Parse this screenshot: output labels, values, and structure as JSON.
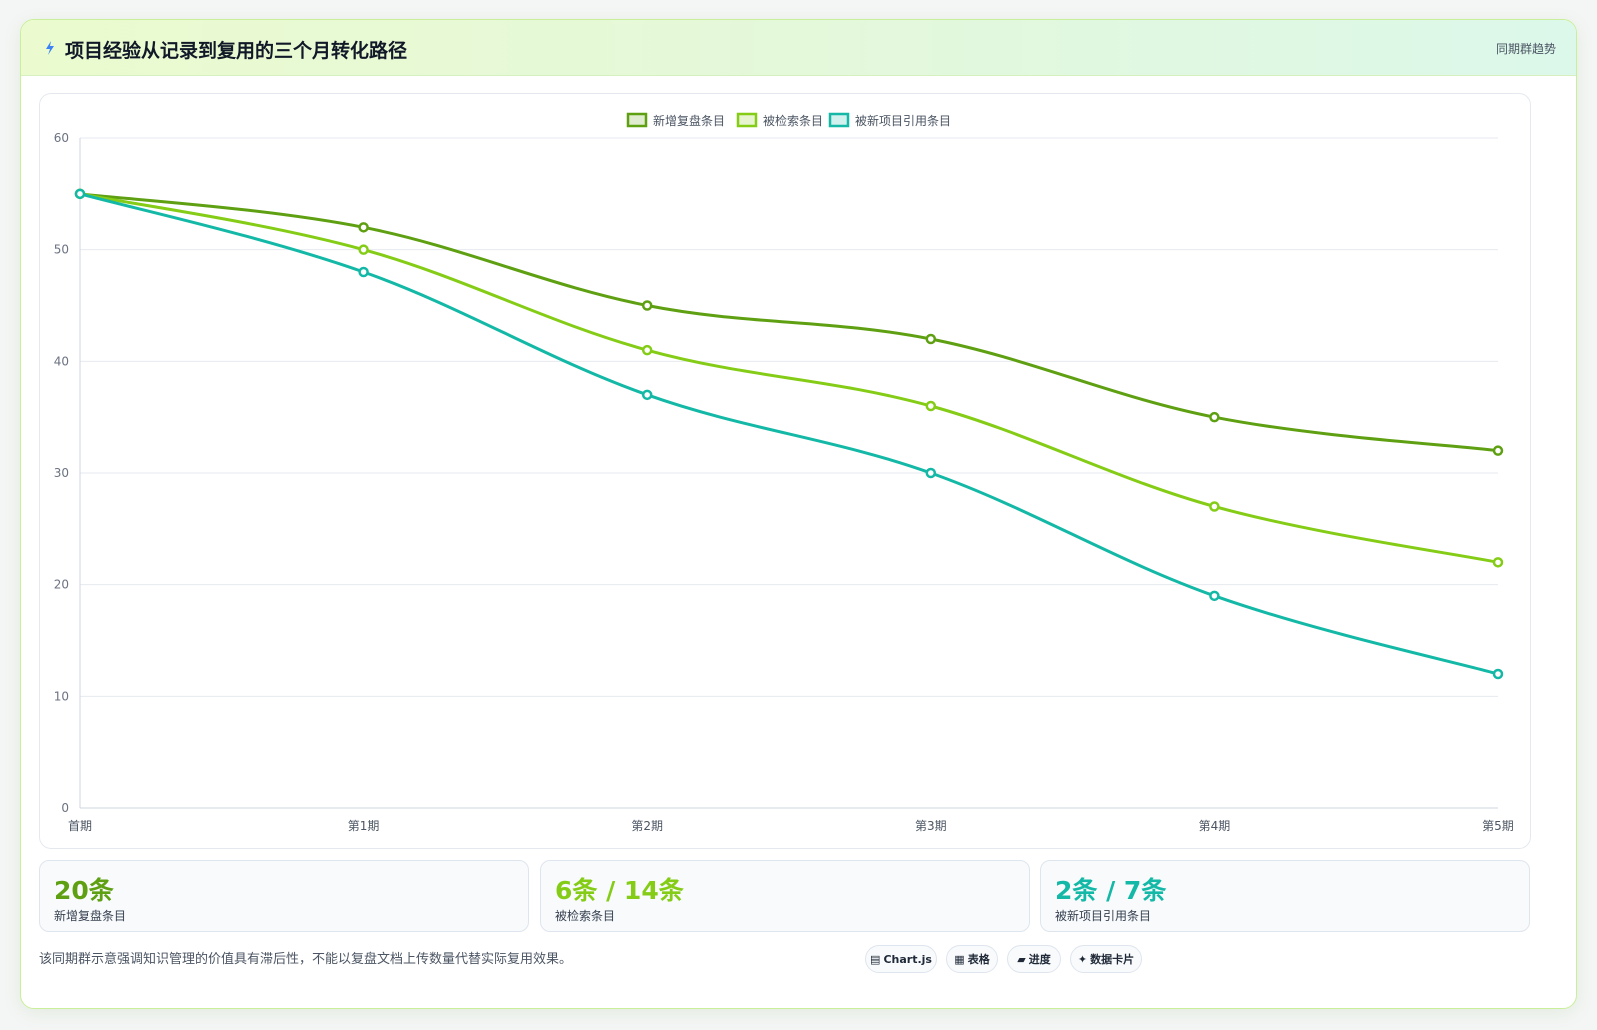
{
  "header": {
    "title": "项目经验从记录到复用的三个月转化路径",
    "tag": "同期群趋势"
  },
  "colors": {
    "series1": "#5ea012",
    "series2": "#84cc16",
    "series3": "#14b8a6"
  },
  "chart_data": {
    "type": "line",
    "categories": [
      "首期",
      "第1期",
      "第2期",
      "第3期",
      "第4期",
      "第5期"
    ],
    "series": [
      {
        "name": "新增复盘条目",
        "values": [
          55,
          52,
          45,
          42,
          35,
          32
        ]
      },
      {
        "name": "被检索条目",
        "values": [
          55,
          50,
          41,
          36,
          27,
          22
        ]
      },
      {
        "name": "被新项目引用条目",
        "values": [
          55,
          48,
          37,
          30,
          19,
          12
        ]
      }
    ],
    "ylim": [
      0,
      60
    ],
    "yticks": [
      "0",
      "10",
      "20",
      "30",
      "40",
      "50",
      "60"
    ],
    "grid": true,
    "legend": "top-center",
    "smooth": true
  },
  "stats": [
    {
      "value": "20条",
      "label": "新增复盘条目"
    },
    {
      "value": "6条 / 14条",
      "label": "被检索条目"
    },
    {
      "value": "2条 / 7条",
      "label": "被新项目引用条目"
    }
  ],
  "footnote": "该同期群示意强调知识管理的价值具有滞后性，不能以复盘文档上传数量代替实际复用效果。",
  "chips": [
    {
      "icon": "▤",
      "label": "Chart.js"
    },
    {
      "icon": "▦",
      "label": "表格"
    },
    {
      "icon": "▰",
      "label": "进度"
    },
    {
      "icon": "✦",
      "label": "数据卡片"
    }
  ]
}
